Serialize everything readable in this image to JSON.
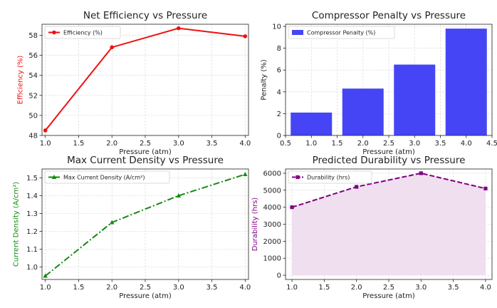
{
  "chart_data": [
    {
      "type": "line",
      "title": "Net Efficiency vs Pressure",
      "xlabel": "Pressure (atm)",
      "ylabel": "Efficiency (%)",
      "x": [
        1.0,
        2.0,
        3.0,
        4.0
      ],
      "series": [
        {
          "name": "Efficiency (%)",
          "values": [
            48.5,
            56.8,
            58.7,
            57.9
          ],
          "color": "#ee1111",
          "marker": "circle",
          "dash": "solid"
        }
      ],
      "xlim": [
        0.95,
        4.05
      ],
      "ylim": [
        48,
        59.1
      ],
      "xticks": [
        "1.0",
        "1.5",
        "2.0",
        "2.5",
        "3.0",
        "3.5",
        "4.0"
      ],
      "yticks": [
        "48",
        "50",
        "52",
        "54",
        "56",
        "58"
      ],
      "ylabel_color": "#ee1111",
      "legend": "top-left",
      "grid": true
    },
    {
      "type": "bar",
      "title": "Compressor Penalty vs Pressure",
      "xlabel": "Pressure (atm)",
      "ylabel": "Penalty (%)",
      "x": [
        1.0,
        2.0,
        3.0,
        4.0
      ],
      "series": [
        {
          "name": "Compressor Penalty (%)",
          "values": [
            2.1,
            4.3,
            6.5,
            9.8
          ],
          "color": "#4545f5"
        }
      ],
      "bar_width": 0.8,
      "xlim": [
        0.5,
        4.5
      ],
      "ylim": [
        0,
        10.2
      ],
      "xticks": [
        "0.5",
        "1.0",
        "1.5",
        "2.0",
        "2.5",
        "3.0",
        "3.5",
        "4.0",
        "4.5"
      ],
      "yticks": [
        "0",
        "2",
        "4",
        "6",
        "8",
        "10"
      ],
      "ylabel_color": "#222222",
      "legend": "top-left",
      "grid": true
    },
    {
      "type": "line",
      "title": "Max Current Density vs Pressure",
      "xlabel": "Pressure (atm)",
      "ylabel": "Current Density (A/cm²)",
      "x": [
        1.0,
        2.0,
        3.0,
        4.0
      ],
      "series": [
        {
          "name": "Max Current Density (A/cm²)",
          "values": [
            0.95,
            1.25,
            1.4,
            1.52
          ],
          "color": "#138a13",
          "marker": "triangle",
          "dash": "dashdot"
        }
      ],
      "xlim": [
        0.95,
        4.05
      ],
      "ylim": [
        0.93,
        1.55
      ],
      "xticks": [
        "1.0",
        "1.5",
        "2.0",
        "2.5",
        "3.0",
        "3.5",
        "4.0"
      ],
      "yticks": [
        "1.0",
        "1.1",
        "1.2",
        "1.3",
        "1.4",
        "1.5"
      ],
      "ylabel_color": "#138a13",
      "legend": "top-left",
      "grid": true
    },
    {
      "type": "area",
      "title": "Predicted Durability vs Pressure",
      "xlabel": "Pressure (atm)",
      "ylabel": "Durability (hrs)",
      "x": [
        1.0,
        2.0,
        3.0,
        4.0
      ],
      "series": [
        {
          "name": "Durability (hrs)",
          "values": [
            4000,
            5200,
            6000,
            5100
          ],
          "color": "#800080",
          "marker": "square",
          "dash": "dashed",
          "fill": "#efdfef"
        }
      ],
      "xlim": [
        0.9,
        4.1
      ],
      "ylim": [
        -250,
        6250
      ],
      "xticks": [
        "1.0",
        "1.5",
        "2.0",
        "2.5",
        "3.0",
        "3.5",
        "4.0"
      ],
      "yticks": [
        "0",
        "1000",
        "2000",
        "3000",
        "4000",
        "5000",
        "6000"
      ],
      "ylabel_color": "#800080",
      "legend": "top-left",
      "grid": true
    }
  ]
}
